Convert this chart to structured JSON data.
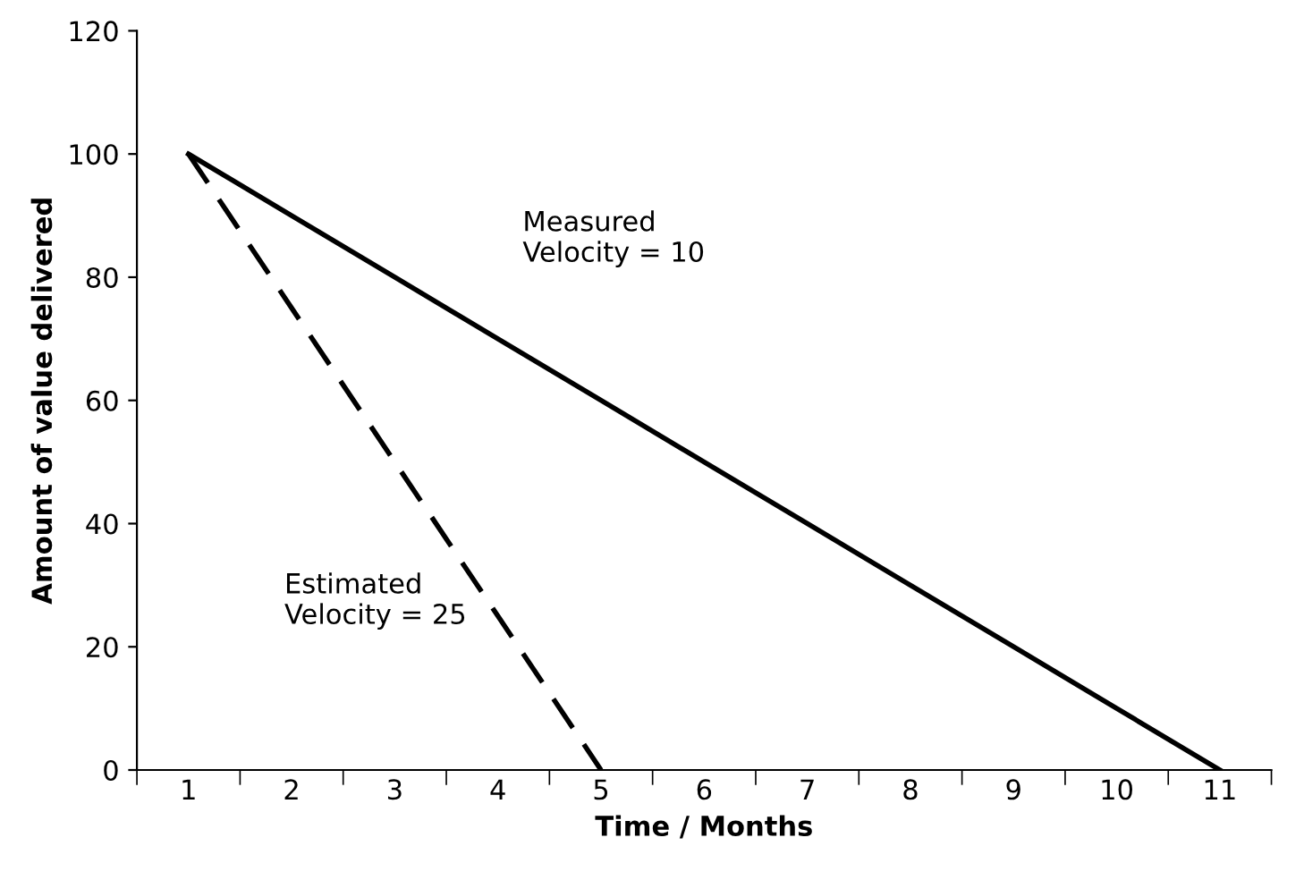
{
  "chart_data": {
    "type": "line",
    "xlabel": "Time / Months",
    "ylabel": "Amount of value delivered",
    "categories": [
      "1",
      "2",
      "3",
      "4",
      "5",
      "6",
      "7",
      "8",
      "9",
      "10",
      "11"
    ],
    "series": [
      {
        "color": "#000000",
        "line_style": "solid",
        "values": [
          100,
          90,
          80,
          70,
          60,
          50,
          40,
          30,
          20,
          10,
          0
        ]
      },
      {
        "color": "#000000",
        "line_style": "dashed",
        "values": [
          100,
          75,
          50,
          25,
          0,
          null,
          null,
          null,
          null,
          null,
          null
        ]
      }
    ],
    "annotations": [
      "Measured\nVelocity = 10",
      "Estimated\nVelocity = 25"
    ],
    "ylim": [
      0,
      120
    ],
    "yticks": [
      0,
      20,
      40,
      60,
      80,
      100,
      120
    ],
    "grid": false,
    "legend": false,
    "marker": "none"
  }
}
